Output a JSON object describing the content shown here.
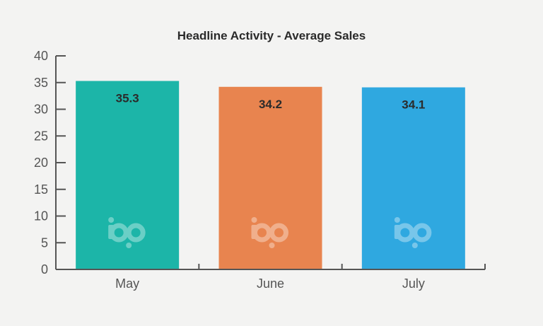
{
  "chart_data": {
    "type": "bar",
    "title": "Headline Activity - Average Sales",
    "xlabel": "",
    "ylabel": "",
    "categories": [
      "May",
      "June",
      "July"
    ],
    "values": [
      35.3,
      34.2,
      34.1
    ],
    "value_labels": [
      "35.3",
      "34.2",
      "34.1"
    ],
    "bar_colors": [
      "#1cb5a8",
      "#e8844f",
      "#2fa8e0"
    ],
    "ylim": [
      0,
      40
    ],
    "yticks": [
      0,
      5,
      10,
      15,
      20,
      25,
      30,
      35,
      40
    ],
    "ytick_labels": [
      "0",
      "5",
      "10",
      "15",
      "20",
      "25",
      "30",
      "35",
      "40"
    ],
    "grid": false,
    "legend": "none",
    "watermark_icon": "bp-logo-icon"
  },
  "colors": {
    "background": "#f3f3f2",
    "axis": "#555555",
    "text": "#2a2a2a"
  }
}
